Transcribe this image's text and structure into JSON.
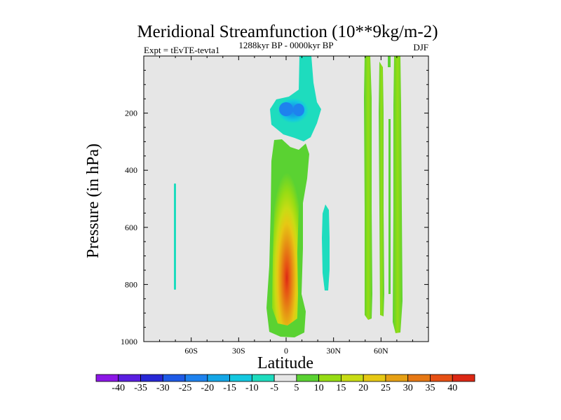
{
  "chart_data": {
    "type": "heatmap",
    "title": "Meridional Streamfunction (10**9kg/m-2)",
    "left_label": "Expt = tEvTE-tevta1",
    "center_label": "1288kyr BP - 0000kyr BP",
    "right_label": "DJF",
    "xlabel": "Latitude",
    "ylabel": "Pressure (in hPa)",
    "xlim": [
      -90,
      90
    ],
    "ylim": [
      1000,
      0
    ],
    "x_ticks": [
      {
        "value": -60,
        "label": "60S"
      },
      {
        "value": -30,
        "label": "30S"
      },
      {
        "value": 0,
        "label": "0"
      },
      {
        "value": 30,
        "label": "30N"
      },
      {
        "value": 60,
        "label": "60N"
      }
    ],
    "y_ticks": [
      {
        "value": 200,
        "label": "200"
      },
      {
        "value": 400,
        "label": "400"
      },
      {
        "value": 600,
        "label": "600"
      },
      {
        "value": 800,
        "label": "800"
      },
      {
        "value": 1000,
        "label": "1000"
      }
    ],
    "background_color": "#e6e6e6",
    "colorbar": {
      "labels": [
        "-40",
        "-35",
        "-30",
        "-25",
        "-20",
        "-15",
        "-10",
        "-5",
        "5",
        "10",
        "15",
        "20",
        "25",
        "30",
        "35",
        "40"
      ],
      "colors": [
        "#8c17e6",
        "#5a1ee0",
        "#2828d6",
        "#1e5ae6",
        "#1e82ee",
        "#14a6e6",
        "#14c8e0",
        "#1edcbe",
        "#e6e6e6",
        "#5ad232",
        "#96dc14",
        "#c8dc14",
        "#e6c814",
        "#e6a014",
        "#e67814",
        "#e65014",
        "#dc2814"
      ]
    },
    "features": [
      {
        "name": "upper-negative-cell",
        "lat_range": [
          -9,
          24
        ],
        "p_range": [
          20,
          300
        ],
        "min_value": -20,
        "description_level": "negative"
      },
      {
        "name": "tropical-positive-cell",
        "lat_range": [
          -8,
          11
        ],
        "p_range": [
          285,
          975
        ],
        "max_value": 40
      },
      {
        "name": "weak-negative-band-south",
        "lat_range": [
          -69,
          -68
        ],
        "p_range": [
          445,
          820
        ],
        "min_value": -5
      },
      {
        "name": "weak-negative-band-north",
        "lat_range": [
          24,
          28
        ],
        "p_range": [
          510,
          810
        ],
        "min_value": -5
      },
      {
        "name": "positive-band-50n",
        "lat_range": [
          50,
          54
        ],
        "p_range": [
          0,
          910
        ],
        "max_value": 10
      },
      {
        "name": "positive-band-60n",
        "lat_range": [
          59,
          63
        ],
        "p_range": [
          20,
          905
        ],
        "max_value": 10
      },
      {
        "name": "positive-band-70n",
        "lat_range": [
          67,
          73
        ],
        "p_range": [
          0,
          965
        ],
        "max_value": 15
      }
    ]
  }
}
